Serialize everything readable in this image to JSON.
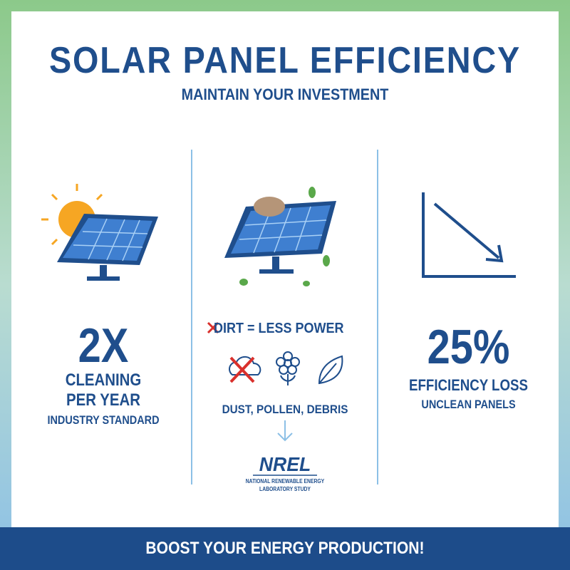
{
  "header": {
    "title": "SOLAR PANEL EFFICIENCY",
    "subtitle": "MAINTAIN YOUR INVESTMENT"
  },
  "columns": [
    {
      "stat": "2X",
      "label_lines": [
        "CLEANING",
        "PER YEAR"
      ],
      "note": "INDUSTRY STANDARD"
    },
    {
      "headline": "DIRT = LESS POWER",
      "causes": "DUST, POLLEN, DEBRIS",
      "source": {
        "name": "NREL",
        "lines": [
          "NATIONAL RENEWABLE ENERGY",
          "LABORATORY STUDY"
        ]
      }
    },
    {
      "stat": "25%",
      "label": "EFFICIENCY LOSS",
      "note": "UNCLEAN PANELS"
    }
  ],
  "footer": {
    "text": "BOOST YOUR ENERGY PRODUCTION!"
  }
}
